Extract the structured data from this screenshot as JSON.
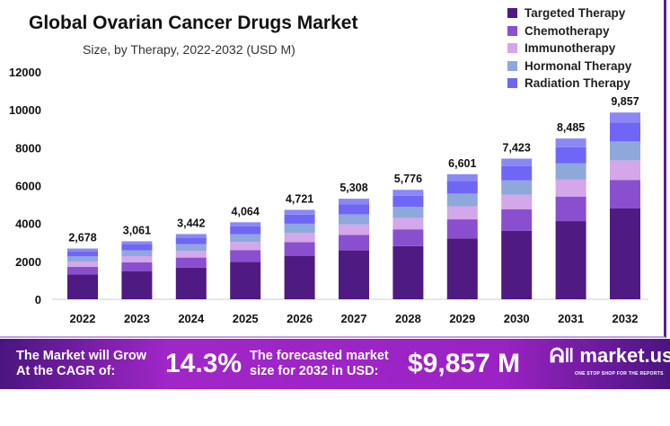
{
  "chart_data": {
    "type": "bar",
    "stacked": true,
    "title": "Global Ovarian Cancer Drugs Market",
    "subtitle": "Size, by Therapy, 2022-2032 (USD M)",
    "categories": [
      "2022",
      "2023",
      "2024",
      "2025",
      "2026",
      "2027",
      "2028",
      "2029",
      "2030",
      "2031",
      "2032"
    ],
    "totals": [
      "2,678",
      "3,061",
      "3,442",
      "4,064",
      "4,721",
      "5,308",
      "5,776",
      "6,601",
      "7,423",
      "8,485",
      "9,857"
    ],
    "ylim": [
      0,
      12000
    ],
    "yticks": [
      0,
      2000,
      4000,
      6000,
      8000,
      10000,
      12000
    ],
    "grid": false,
    "legend_position": "top-right",
    "series": [
      {
        "name": "Targeted Therapy",
        "color": "#4f1a82",
        "values": [
          1302,
          1488,
          1673,
          1975,
          2294,
          2580,
          2807,
          3208,
          3608,
          4124,
          4791
        ]
      },
      {
        "name": "Chemotherapy",
        "color": "#8a4fcf",
        "values": [
          410,
          468,
          527,
          622,
          722,
          812,
          884,
          1010,
          1136,
          1298,
          1508
        ]
      },
      {
        "name": "Immunotherapy",
        "color": "#d4a6ea",
        "values": [
          281,
          321,
          361,
          427,
          496,
          557,
          606,
          693,
          779,
          891,
          1035
        ]
      },
      {
        "name": "Hormonal Therapy",
        "color": "#8fa8dc",
        "values": [
          270,
          309,
          348,
          410,
          477,
          536,
          583,
          667,
          750,
          857,
          996
        ]
      },
      {
        "name": "Radiation Therapy",
        "color": "#6f66f5",
        "values": [
          270,
          309,
          348,
          410,
          477,
          536,
          583,
          667,
          750,
          857,
          996
        ]
      },
      {
        "color": "#8b87f5",
        "values": [
          145,
          166,
          185,
          220,
          255,
          287,
          313,
          356,
          400,
          458,
          531
        ]
      }
    ]
  },
  "footer": {
    "cagr_label_1": "The Market will Grow",
    "cagr_label_2": "At the CAGR of:",
    "cagr_value": "14.3%",
    "forecast_label_1": "The forecasted market",
    "forecast_label_2": "size for 2032 in USD:",
    "forecast_value": "$9,857 M",
    "logo": "market.us",
    "logo_tagline": "ONE STOP SHOP FOR THE REPORTS"
  }
}
